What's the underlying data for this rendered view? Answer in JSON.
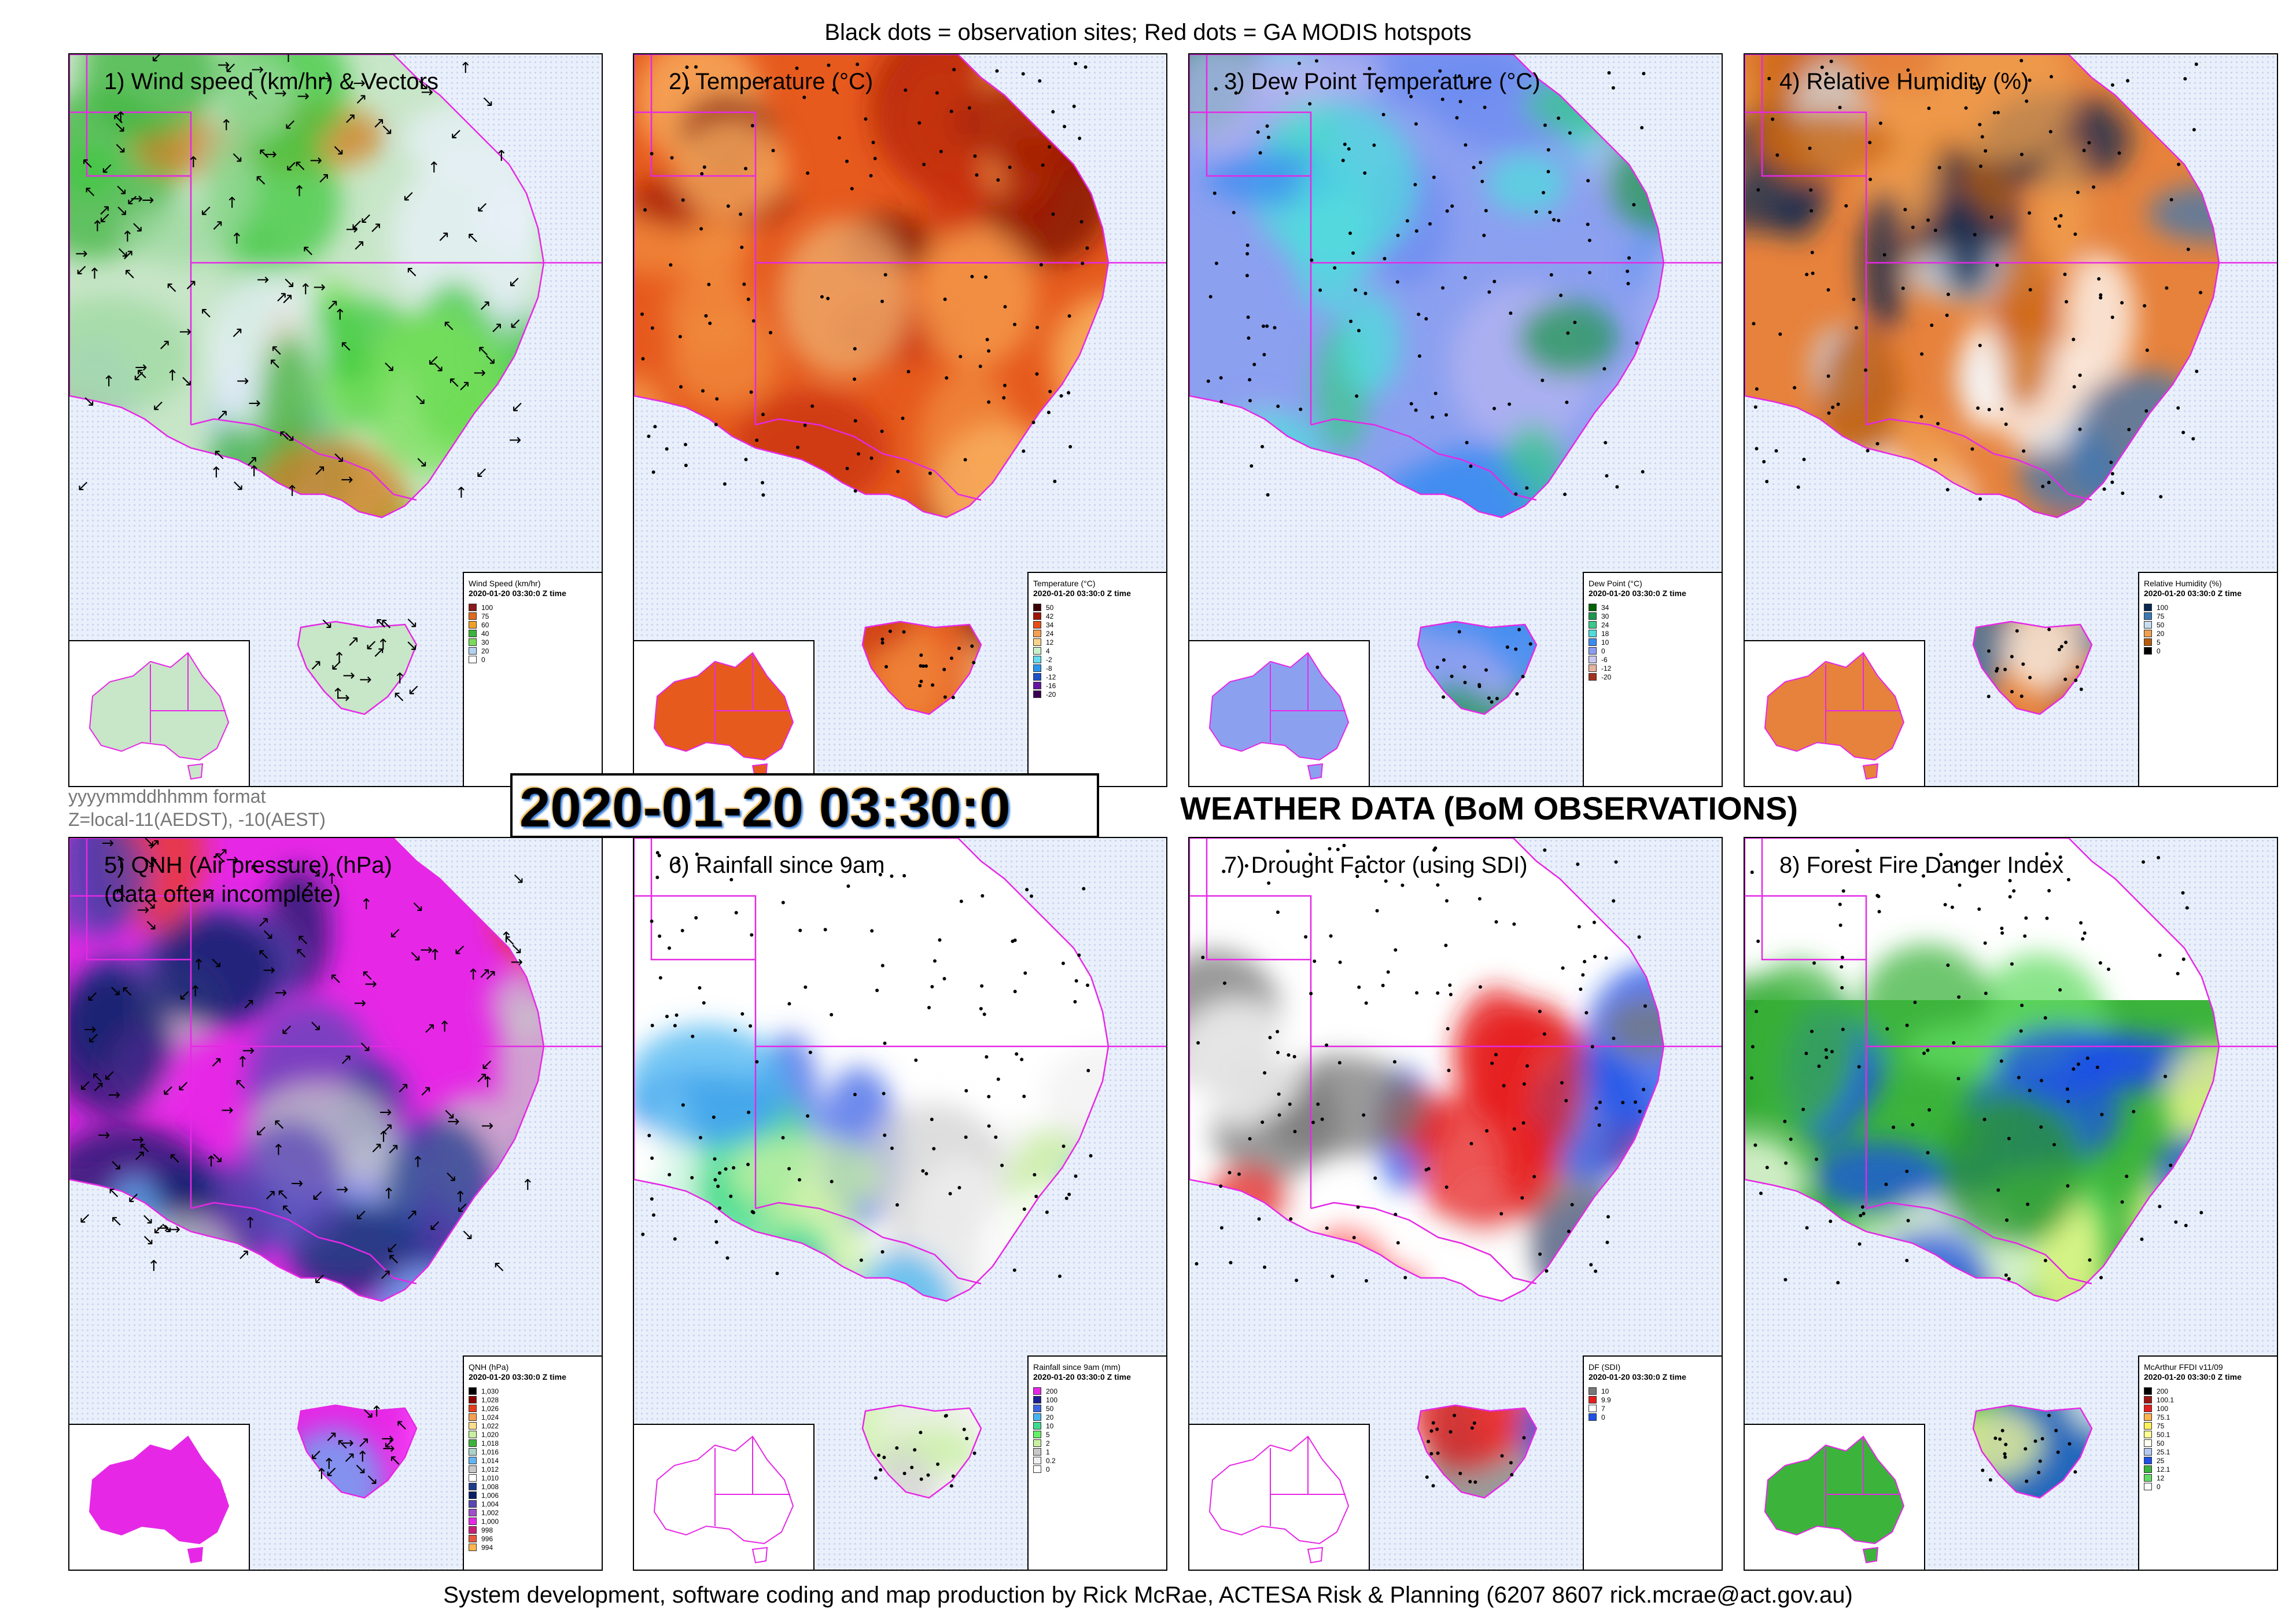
{
  "header": {
    "caption": "Black dots = observation sites; Red dots = GA MODIS hotspots"
  },
  "footer": {
    "credit": "System development, software coding and map production by Rick McRae, ACTESA Risk & Planning (6207 8607 rick.mcrae@act.gov.au)"
  },
  "timestamp": {
    "value": "2020-01-20 03:30:0"
  },
  "format_note": {
    "line1": "yyyymmddhhmm format",
    "line2": "Z=local-11(AEDST), -10(AEST)"
  },
  "heading": {
    "text": "WEATHER DATA (BoM OBSERVATIONS)"
  },
  "panels": [
    {
      "id": "wind",
      "title": "1) Wind speed (km/hr) & Vectors",
      "title2": "",
      "legend": {
        "title": "Wind Speed (km/hr)",
        "subtitle": "2020-01-20 03:30:0 Z time",
        "items": [
          {
            "label": "100",
            "color": "#8b1a1a"
          },
          {
            "label": "75",
            "color": "#e06a1c"
          },
          {
            "label": "60",
            "color": "#f0a028"
          },
          {
            "label": "40",
            "color": "#3cb43c"
          },
          {
            "label": "30",
            "color": "#78dc5a"
          },
          {
            "label": "20",
            "color": "#b4d2f0"
          },
          {
            "label": "0",
            "color": "#ffffff"
          }
        ]
      }
    },
    {
      "id": "temperature",
      "title": "2) Temperature (°C)",
      "title2": "",
      "legend": {
        "title": "Temperature (°C)",
        "subtitle": "2020-01-20 03:30:0 Z time",
        "items": [
          {
            "label": "50",
            "color": "#3c0000"
          },
          {
            "label": "42",
            "color": "#a01400"
          },
          {
            "label": "34",
            "color": "#e64b14"
          },
          {
            "label": "24",
            "color": "#f5a050"
          },
          {
            "label": "12",
            "color": "#fad28c"
          },
          {
            "label": "4",
            "color": "#c8f0c8"
          },
          {
            "label": "-2",
            "color": "#64dcf0"
          },
          {
            "label": "-8",
            "color": "#2896f0"
          },
          {
            "label": "-12",
            "color": "#1e50c8"
          },
          {
            "label": "-16",
            "color": "#6414a0"
          },
          {
            "label": "-20",
            "color": "#3c0050"
          }
        ]
      }
    },
    {
      "id": "dewpoint",
      "title": "3) Dew Point Temperature (°C)",
      "title2": "",
      "legend": {
        "title": "Dew Point (°C)",
        "subtitle": "2020-01-20 03:30:0 Z time",
        "items": [
          {
            "label": "34",
            "color": "#006400"
          },
          {
            "label": "30",
            "color": "#1e9650"
          },
          {
            "label": "24",
            "color": "#3cc88c"
          },
          {
            "label": "18",
            "color": "#50dcdc"
          },
          {
            "label": "10",
            "color": "#3c8cf0"
          },
          {
            "label": "0",
            "color": "#8c9cf0"
          },
          {
            "label": "-6",
            "color": "#c8c8f0"
          },
          {
            "label": "-12",
            "color": "#e6b4a0"
          },
          {
            "label": "-20",
            "color": "#a0321e"
          }
        ]
      }
    },
    {
      "id": "humidity",
      "title": "4) Relative Humidity (%)",
      "title2": "",
      "legend": {
        "title": "Relative Humidity (%)",
        "subtitle": "2020-01-20 03:30:0 Z time",
        "items": [
          {
            "label": "100",
            "color": "#0a2850"
          },
          {
            "label": "75",
            "color": "#3c78b4"
          },
          {
            "label": "50",
            "color": "#c8dcf0"
          },
          {
            "label": "20",
            "color": "#f0a050"
          },
          {
            "label": "5",
            "color": "#b45a0a"
          },
          {
            "label": "0",
            "color": "#000000"
          }
        ]
      }
    },
    {
      "id": "qnh",
      "title": "5) QNH (Air pressure) (hPa)",
      "title2": "(data often incomplete)",
      "legend": {
        "title": "QNH (hPa)",
        "subtitle": "2020-01-20 03:30:0 Z time",
        "items": [
          {
            "label": "1,030",
            "color": "#000000"
          },
          {
            "label": "1,028",
            "color": "#8b0000"
          },
          {
            "label": "1,026",
            "color": "#e63c1e"
          },
          {
            "label": "1,024",
            "color": "#f5a050"
          },
          {
            "label": "1,022",
            "color": "#fadc8c"
          },
          {
            "label": "1,020",
            "color": "#c8f0a0"
          },
          {
            "label": "1,018",
            "color": "#3cb43c"
          },
          {
            "label": "1,016",
            "color": "#aad2c8"
          },
          {
            "label": "1,014",
            "color": "#64b4f0"
          },
          {
            "label": "1,012",
            "color": "#c8c8c8"
          },
          {
            "label": "1,010",
            "color": "#ffffff"
          },
          {
            "label": "1,008",
            "color": "#1e3c8c"
          },
          {
            "label": "1,006",
            "color": "#0a1e64"
          },
          {
            "label": "1,004",
            "color": "#5a46b4"
          },
          {
            "label": "1,002",
            "color": "#a050c8"
          },
          {
            "label": "1,000",
            "color": "#e628e6"
          },
          {
            "label": "998",
            "color": "#c81e78"
          },
          {
            "label": "996",
            "color": "#e65a3c"
          },
          {
            "label": "994",
            "color": "#ffb450"
          }
        ]
      }
    },
    {
      "id": "rainfall",
      "title": "6) Rainfall since 9am",
      "title2": "",
      "legend": {
        "title": "Rainfall since 9am (mm)",
        "subtitle": "2020-01-20 03:30:0 Z time",
        "items": [
          {
            "label": "200",
            "color": "#e628e6"
          },
          {
            "label": "100",
            "color": "#1e1e96"
          },
          {
            "label": "50",
            "color": "#3c64e6"
          },
          {
            "label": "20",
            "color": "#46b4f0"
          },
          {
            "label": "10",
            "color": "#3cdc8c"
          },
          {
            "label": "5",
            "color": "#64f064"
          },
          {
            "label": "2",
            "color": "#c8f0a0"
          },
          {
            "label": "1",
            "color": "#c8c8c8"
          },
          {
            "label": "0.2",
            "color": "#f0f0f0"
          },
          {
            "label": "0",
            "color": "#ffffff"
          }
        ]
      }
    },
    {
      "id": "drought",
      "title": "7) Drought Factor (using SDI)",
      "title2": "",
      "legend": {
        "title": "DF (SDI)",
        "subtitle": "2020-01-20 03:30:0 Z time",
        "items": [
          {
            "label": "10",
            "color": "#787878"
          },
          {
            "label": "9.9",
            "color": "#e61e1e"
          },
          {
            "label": "7",
            "color": "#ffffff"
          },
          {
            "label": "0",
            "color": "#1e50e6"
          }
        ]
      }
    },
    {
      "id": "ffdi",
      "title": "8) Forest Fire Danger Index",
      "title2": "",
      "legend": {
        "title": "McArthur FFDI v11/09",
        "subtitle": "2020-01-20 03:30:0 Z time",
        "items": [
          {
            "label": "200",
            "color": "#000000"
          },
          {
            "label": "100.1",
            "color": "#a01414"
          },
          {
            "label": "100",
            "color": "#e61e1e"
          },
          {
            "label": "75.1",
            "color": "#ffb450"
          },
          {
            "label": "75",
            "color": "#fff05a"
          },
          {
            "label": "50.1",
            "color": "#ffff96"
          },
          {
            "label": "50",
            "color": "#fffff0"
          },
          {
            "label": "25.1",
            "color": "#b4c8f0"
          },
          {
            "label": "25",
            "color": "#1e50e6"
          },
          {
            "label": "12.1",
            "color": "#3cb43c"
          },
          {
            "label": "12",
            "color": "#64dc64"
          },
          {
            "label": "0",
            "color": "#ffffff"
          }
        ]
      }
    }
  ]
}
